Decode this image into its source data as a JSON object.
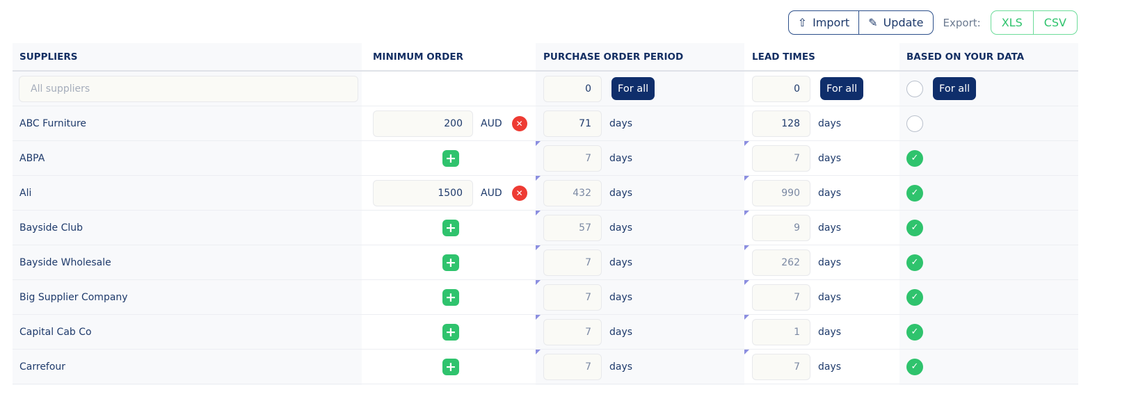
{
  "toolbar": {
    "import": "Import",
    "update": "Update",
    "export_label": "Export:",
    "xls": "XLS",
    "csv": "CSV"
  },
  "headers": {
    "suppliers": "SUPPLIERS",
    "minimum_order": "MINIMUM ORDER",
    "purchase_order_period": "PURCHASE ORDER PERIOD",
    "lead_times": "LEAD TIMES",
    "based_on_data": "BASED ON YOUR DATA"
  },
  "filter": {
    "placeholder": "All suppliers",
    "pop_value": "0",
    "lead_value": "0",
    "for_all": "For all",
    "based_checked": false
  },
  "units": {
    "currency": "AUD",
    "days": "days"
  },
  "colors": {
    "accent": "#0f2e6b",
    "green": "#2fc36d",
    "red": "#ee3b33"
  },
  "rows": [
    {
      "name": "ABC Furniture",
      "min_order": "200",
      "pop": "71",
      "lead": "128",
      "based": false,
      "custom": true
    },
    {
      "name": "ABPA",
      "min_order": null,
      "pop": "7",
      "lead": "7",
      "based": true,
      "custom": false
    },
    {
      "name": "Ali",
      "min_order": "1500",
      "pop": "432",
      "lead": "990",
      "based": true,
      "custom": false
    },
    {
      "name": "Bayside Club",
      "min_order": null,
      "pop": "57",
      "lead": "9",
      "based": true,
      "custom": false
    },
    {
      "name": "Bayside Wholesale",
      "min_order": null,
      "pop": "7",
      "lead": "262",
      "based": true,
      "custom": false
    },
    {
      "name": "Big Supplier Company",
      "min_order": null,
      "pop": "7",
      "lead": "7",
      "based": true,
      "custom": false
    },
    {
      "name": "Capital Cab Co",
      "min_order": null,
      "pop": "7",
      "lead": "1",
      "based": true,
      "custom": false
    },
    {
      "name": "Carrefour",
      "min_order": null,
      "pop": "7",
      "lead": "7",
      "based": true,
      "custom": false
    }
  ]
}
